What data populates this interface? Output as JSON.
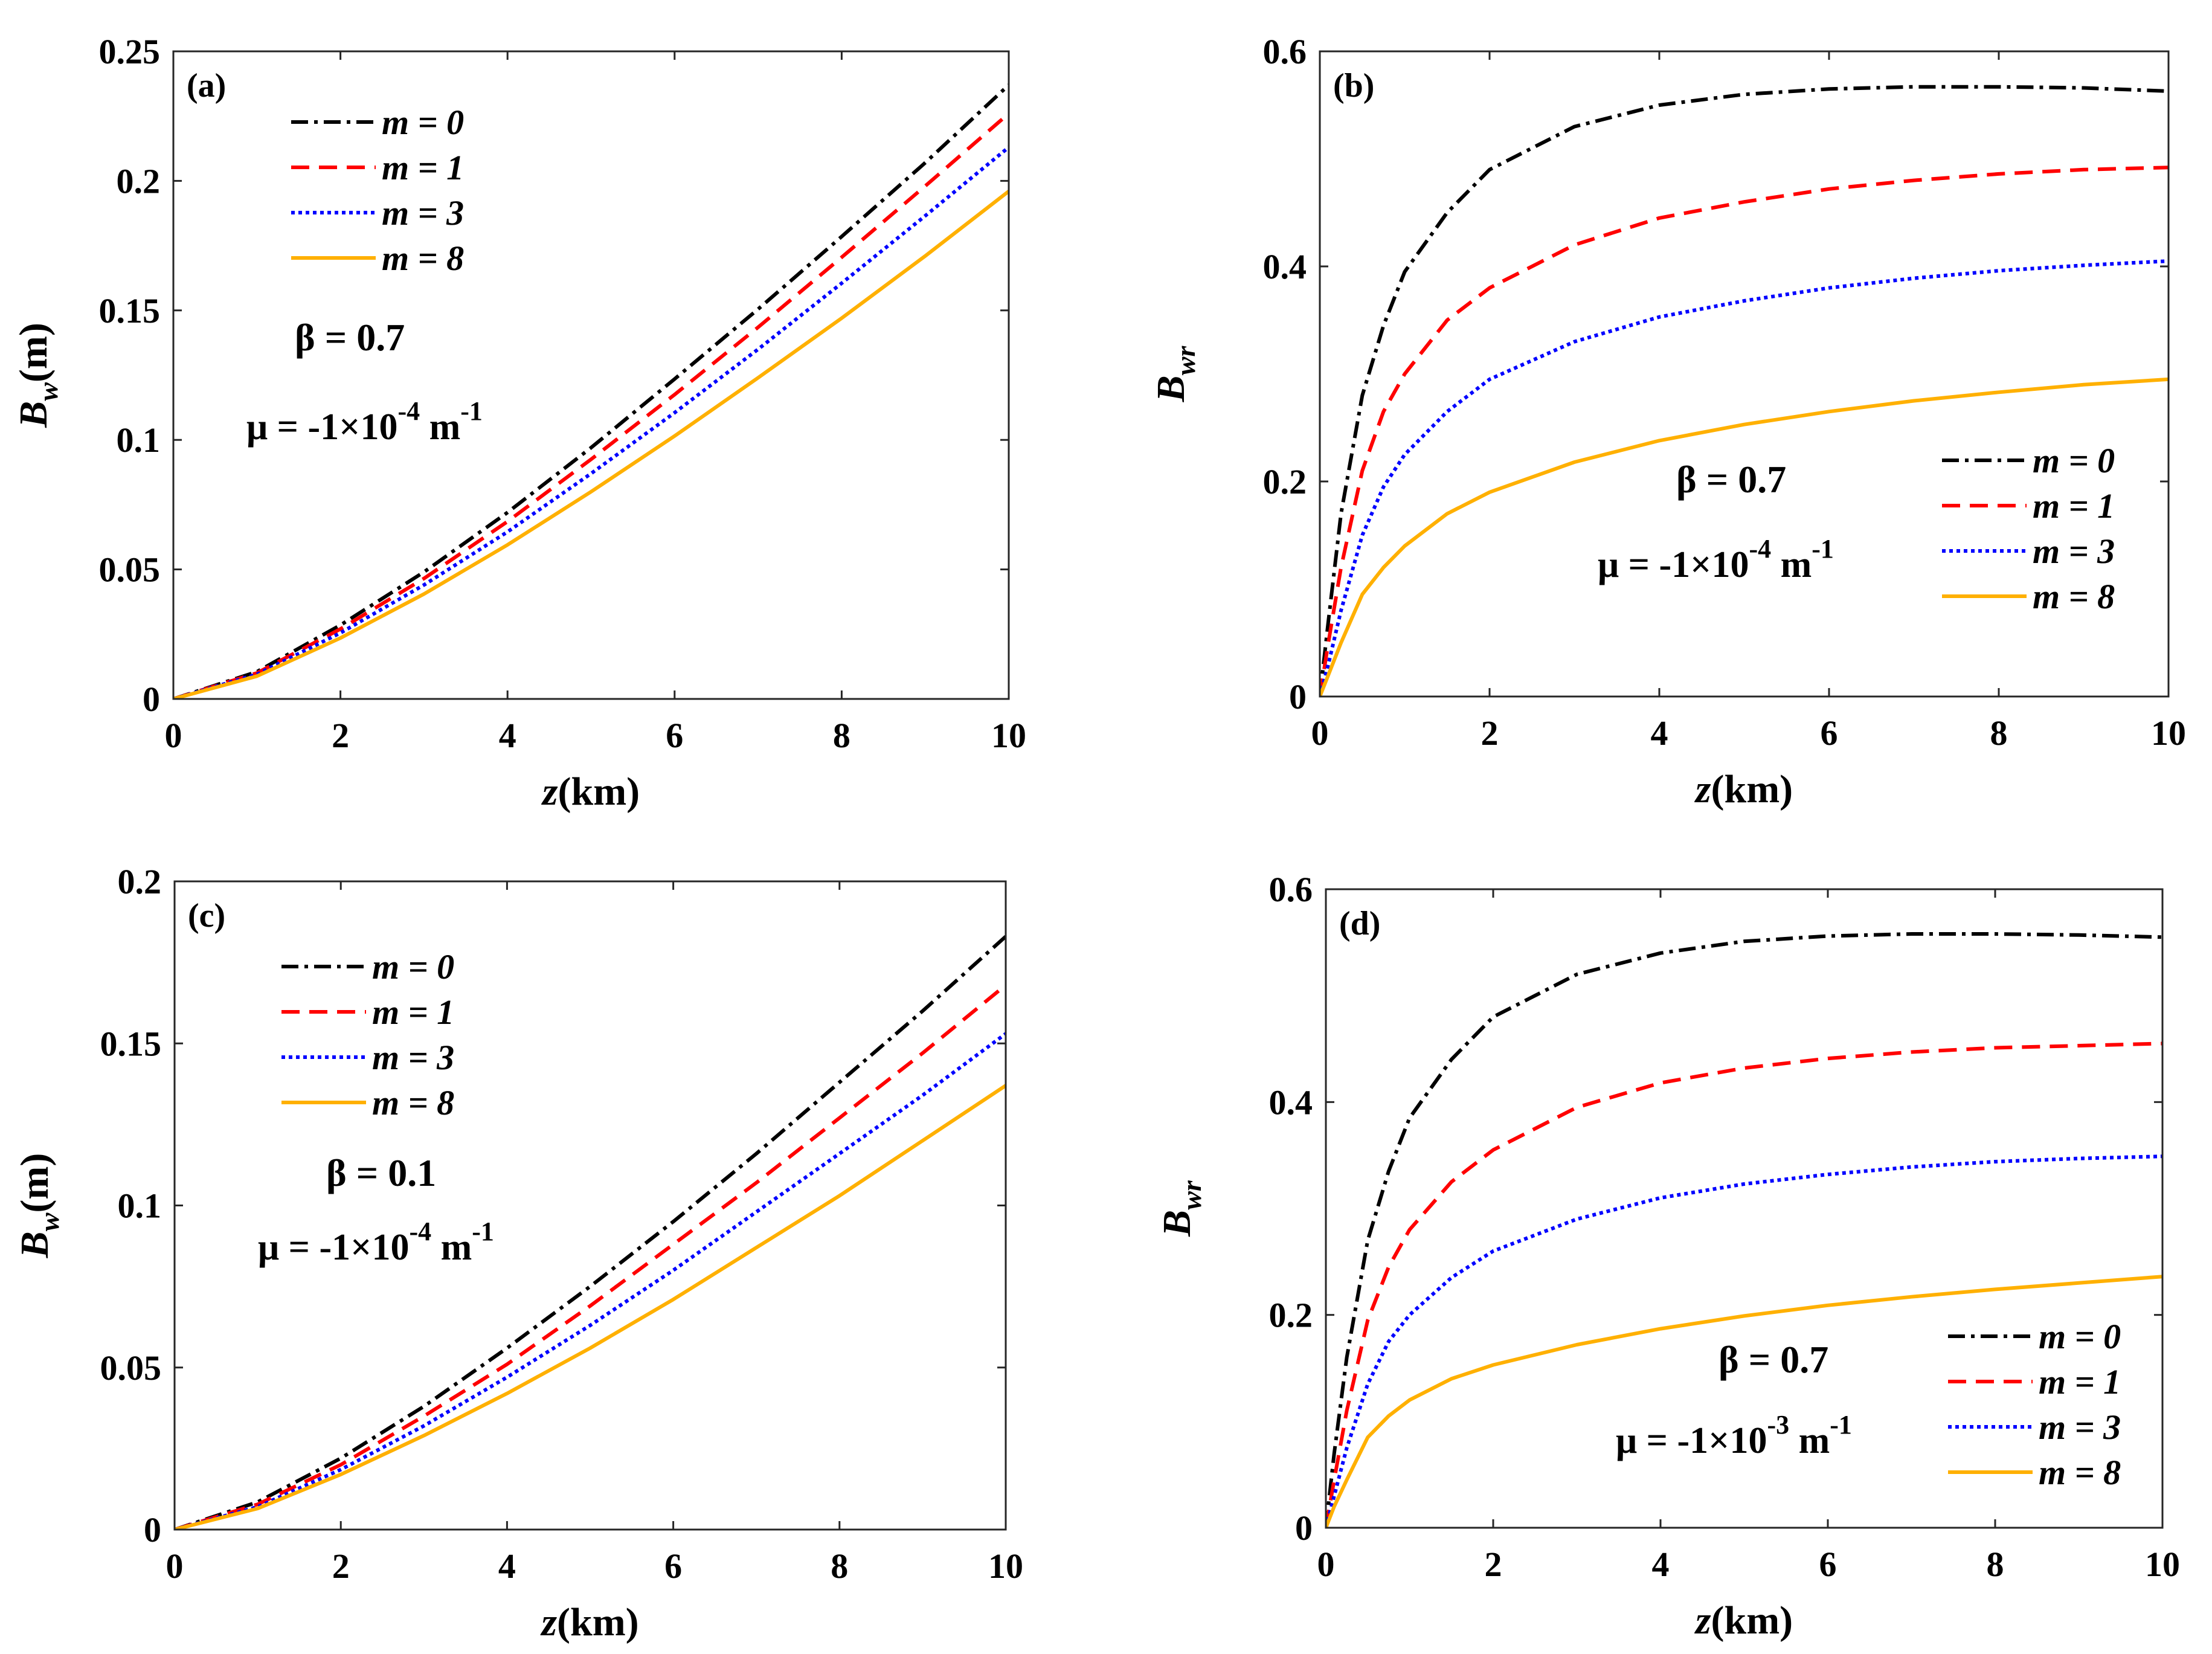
{
  "chart_data": [
    {
      "id": "a",
      "panel_label": "(a)",
      "type": "line",
      "xlabel_var": "z",
      "xlabel_unit": "(km)",
      "ylabel_var": "B",
      "ylabel_sub": "w",
      "ylabel_unit": "(m)",
      "xlim": [
        0,
        10
      ],
      "ylim": [
        0,
        0.25
      ],
      "xticks": [
        0,
        2,
        4,
        6,
        8,
        10
      ],
      "yticks": [
        0,
        0.05,
        0.1,
        0.15,
        0.2,
        0.25
      ],
      "ytick_labels": [
        "0",
        "0.05",
        "0.1",
        "0.15",
        "0.2",
        "0.25"
      ],
      "legend_position": "top-left",
      "legend_items": [
        "m = 0",
        "m = 1",
        "m = 3",
        "m = 8"
      ],
      "beta_text": "β = 0.7",
      "mu_text": "μ = -1×10",
      "mu_exp": "-4",
      "mu_unit": "m",
      "mu_unit_exp": "-1",
      "series": [
        {
          "name": "m = 0",
          "color": "#000000",
          "dash": "dashdot",
          "x": [
            0,
            1,
            2,
            3,
            4,
            5,
            6,
            7,
            8,
            9,
            10
          ],
          "y": [
            0,
            0.0105,
            0.0285,
            0.049,
            0.072,
            0.097,
            0.1235,
            0.1505,
            0.1785,
            0.207,
            0.237
          ]
        },
        {
          "name": "m = 1",
          "color": "#ff0000",
          "dash": "dashed",
          "x": [
            0,
            1,
            2,
            3,
            4,
            5,
            6,
            7,
            8,
            9,
            10
          ],
          "y": [
            0,
            0.01,
            0.027,
            0.0465,
            0.0685,
            0.0925,
            0.1175,
            0.1435,
            0.1705,
            0.198,
            0.226
          ]
        },
        {
          "name": "m = 3",
          "color": "#0000ff",
          "dash": "dotted",
          "x": [
            0,
            1,
            2,
            3,
            4,
            5,
            6,
            7,
            8,
            9,
            10
          ],
          "y": [
            0,
            0.0095,
            0.0255,
            0.044,
            0.0645,
            0.087,
            0.1105,
            0.135,
            0.1605,
            0.1865,
            0.213
          ]
        },
        {
          "name": "m = 8",
          "color": "#ffb000",
          "dash": "solid",
          "x": [
            0,
            1,
            2,
            3,
            4,
            5,
            6,
            7,
            8,
            9,
            10
          ],
          "y": [
            0,
            0.0088,
            0.0235,
            0.0405,
            0.0595,
            0.08,
            0.1015,
            0.124,
            0.147,
            0.171,
            0.196
          ]
        }
      ]
    },
    {
      "id": "b",
      "panel_label": "(b)",
      "type": "line",
      "xlabel_var": "z",
      "xlabel_unit": "(km)",
      "ylabel_var": "B",
      "ylabel_sub": "wr",
      "ylabel_unit": "",
      "xlim": [
        0,
        10
      ],
      "ylim": [
        0,
        0.6
      ],
      "xticks": [
        0,
        2,
        4,
        6,
        8,
        10
      ],
      "yticks": [
        0,
        0.2,
        0.4,
        0.6
      ],
      "ytick_labels": [
        "0",
        "0.2",
        "0.4",
        "0.6"
      ],
      "legend_position": "bottom-right",
      "legend_items": [
        "m = 0",
        "m = 1",
        "m = 3",
        "m = 8"
      ],
      "beta_text": "β = 0.7",
      "mu_text": "μ = -1×10",
      "mu_exp": "-4",
      "mu_unit": "m",
      "mu_unit_exp": "-1",
      "series": [
        {
          "name": "m = 0",
          "color": "#000000",
          "dash": "dashdot",
          "x": [
            0,
            0.1,
            0.25,
            0.5,
            0.75,
            1,
            1.5,
            2,
            3,
            4,
            5,
            6,
            7,
            8,
            9,
            10
          ],
          "y": [
            0,
            0.07,
            0.17,
            0.28,
            0.345,
            0.395,
            0.45,
            0.49,
            0.53,
            0.55,
            0.56,
            0.565,
            0.567,
            0.567,
            0.566,
            0.563
          ]
        },
        {
          "name": "m = 1",
          "color": "#ff0000",
          "dash": "dashed",
          "x": [
            0,
            0.1,
            0.25,
            0.5,
            0.75,
            1,
            1.5,
            2,
            3,
            4,
            5,
            6,
            7,
            8,
            9,
            10
          ],
          "y": [
            0,
            0.05,
            0.12,
            0.21,
            0.265,
            0.3,
            0.35,
            0.38,
            0.42,
            0.445,
            0.46,
            0.472,
            0.48,
            0.486,
            0.49,
            0.492
          ]
        },
        {
          "name": "m = 3",
          "color": "#0000ff",
          "dash": "dotted",
          "x": [
            0,
            0.1,
            0.25,
            0.5,
            0.75,
            1,
            1.5,
            2,
            3,
            4,
            5,
            6,
            7,
            8,
            9,
            10
          ],
          "y": [
            0,
            0.03,
            0.08,
            0.15,
            0.195,
            0.225,
            0.265,
            0.295,
            0.33,
            0.353,
            0.368,
            0.38,
            0.389,
            0.396,
            0.401,
            0.405
          ]
        },
        {
          "name": "m = 8",
          "color": "#ffb000",
          "dash": "solid",
          "x": [
            0,
            0.1,
            0.25,
            0.5,
            0.75,
            1,
            1.5,
            2,
            3,
            4,
            5,
            6,
            7,
            8,
            9,
            10
          ],
          "y": [
            0,
            0.02,
            0.05,
            0.095,
            0.12,
            0.14,
            0.17,
            0.19,
            0.218,
            0.238,
            0.253,
            0.265,
            0.275,
            0.283,
            0.29,
            0.295
          ]
        }
      ]
    },
    {
      "id": "c",
      "panel_label": "(c)",
      "type": "line",
      "xlabel_var": "z",
      "xlabel_unit": "(km)",
      "ylabel_var": "B",
      "ylabel_sub": "w",
      "ylabel_unit": "(m)",
      "xlim": [
        0,
        10
      ],
      "ylim": [
        0,
        0.2
      ],
      "xticks": [
        0,
        2,
        4,
        6,
        8,
        10
      ],
      "yticks": [
        0,
        0.05,
        0.1,
        0.15,
        0.2
      ],
      "ytick_labels": [
        "0",
        "0.05",
        "0.1",
        "0.15",
        "0.2"
      ],
      "legend_position": "top-left",
      "legend_items": [
        "m = 0",
        "m = 1",
        "m = 3",
        "m = 8"
      ],
      "beta_text": "β = 0.1",
      "mu_text": "μ = -1×10",
      "mu_exp": "-4",
      "mu_unit": "m",
      "mu_unit_exp": "-1",
      "series": [
        {
          "name": "m = 0",
          "color": "#000000",
          "dash": "dashdot",
          "x": [
            0,
            1,
            2,
            3,
            4,
            5,
            6,
            7,
            8,
            9,
            10
          ],
          "y": [
            0,
            0.0085,
            0.022,
            0.038,
            0.056,
            0.075,
            0.095,
            0.116,
            0.138,
            0.16,
            0.183
          ]
        },
        {
          "name": "m = 1",
          "color": "#ff0000",
          "dash": "dashed",
          "x": [
            0,
            1,
            2,
            3,
            4,
            5,
            6,
            7,
            8,
            9,
            10
          ],
          "y": [
            0,
            0.0078,
            0.02,
            0.035,
            0.051,
            0.069,
            0.088,
            0.107,
            0.127,
            0.147,
            0.168
          ]
        },
        {
          "name": "m = 3",
          "color": "#0000ff",
          "dash": "dotted",
          "x": [
            0,
            1,
            2,
            3,
            4,
            5,
            6,
            7,
            8,
            9,
            10
          ],
          "y": [
            0,
            0.007,
            0.0185,
            0.032,
            0.047,
            0.063,
            0.08,
            0.098,
            0.116,
            0.134,
            0.153
          ]
        },
        {
          "name": "m = 8",
          "color": "#ffb000",
          "dash": "solid",
          "x": [
            0,
            1,
            2,
            3,
            4,
            5,
            6,
            7,
            8,
            9,
            10
          ],
          "y": [
            0,
            0.0065,
            0.017,
            0.029,
            0.042,
            0.056,
            0.071,
            0.087,
            0.103,
            0.12,
            0.137
          ]
        }
      ]
    },
    {
      "id": "d",
      "panel_label": "(d)",
      "type": "line",
      "xlabel_var": "z",
      "xlabel_unit": "(km)",
      "ylabel_var": "B",
      "ylabel_sub": "wr",
      "ylabel_unit": "",
      "xlim": [
        0,
        10
      ],
      "ylim": [
        0,
        0.6
      ],
      "xticks": [
        0,
        2,
        4,
        6,
        8,
        10
      ],
      "yticks": [
        0,
        0.2,
        0.4,
        0.6
      ],
      "ytick_labels": [
        "0",
        "0.2",
        "0.4",
        "0.6"
      ],
      "legend_position": "bottom-right",
      "legend_items": [
        "m = 0",
        "m = 1",
        "m = 3",
        "m = 8"
      ],
      "beta_text": "β = 0.7",
      "mu_text": "μ = -1×10",
      "mu_exp": "-3",
      "mu_unit": "m",
      "mu_unit_exp": "-1",
      "series": [
        {
          "name": "m = 0",
          "color": "#000000",
          "dash": "dashdot",
          "x": [
            0,
            0.1,
            0.25,
            0.5,
            0.75,
            1,
            1.5,
            2,
            3,
            4,
            5,
            6,
            7,
            8,
            9,
            10
          ],
          "y": [
            0,
            0.07,
            0.16,
            0.27,
            0.335,
            0.385,
            0.44,
            0.48,
            0.52,
            0.54,
            0.551,
            0.556,
            0.558,
            0.558,
            0.557,
            0.555
          ]
        },
        {
          "name": "m = 1",
          "color": "#ff0000",
          "dash": "dashed",
          "x": [
            0,
            0.1,
            0.25,
            0.5,
            0.75,
            1,
            1.5,
            2,
            3,
            4,
            5,
            6,
            7,
            8,
            9,
            10
          ],
          "y": [
            0,
            0.045,
            0.11,
            0.195,
            0.245,
            0.28,
            0.325,
            0.355,
            0.395,
            0.418,
            0.432,
            0.441,
            0.447,
            0.451,
            0.453,
            0.455
          ]
        },
        {
          "name": "m = 3",
          "color": "#0000ff",
          "dash": "dotted",
          "x": [
            0,
            0.1,
            0.25,
            0.5,
            0.75,
            1,
            1.5,
            2,
            3,
            4,
            5,
            6,
            7,
            8,
            9,
            10
          ],
          "y": [
            0,
            0.03,
            0.075,
            0.135,
            0.175,
            0.2,
            0.235,
            0.26,
            0.29,
            0.31,
            0.323,
            0.332,
            0.339,
            0.344,
            0.347,
            0.349
          ]
        },
        {
          "name": "m = 8",
          "color": "#ffb000",
          "dash": "solid",
          "x": [
            0,
            0.1,
            0.25,
            0.5,
            0.75,
            1,
            1.5,
            2,
            3,
            4,
            5,
            6,
            7,
            8,
            9,
            10
          ],
          "y": [
            0,
            0.02,
            0.045,
            0.085,
            0.105,
            0.12,
            0.14,
            0.153,
            0.172,
            0.187,
            0.199,
            0.209,
            0.217,
            0.224,
            0.23,
            0.236
          ]
        }
      ]
    }
  ]
}
